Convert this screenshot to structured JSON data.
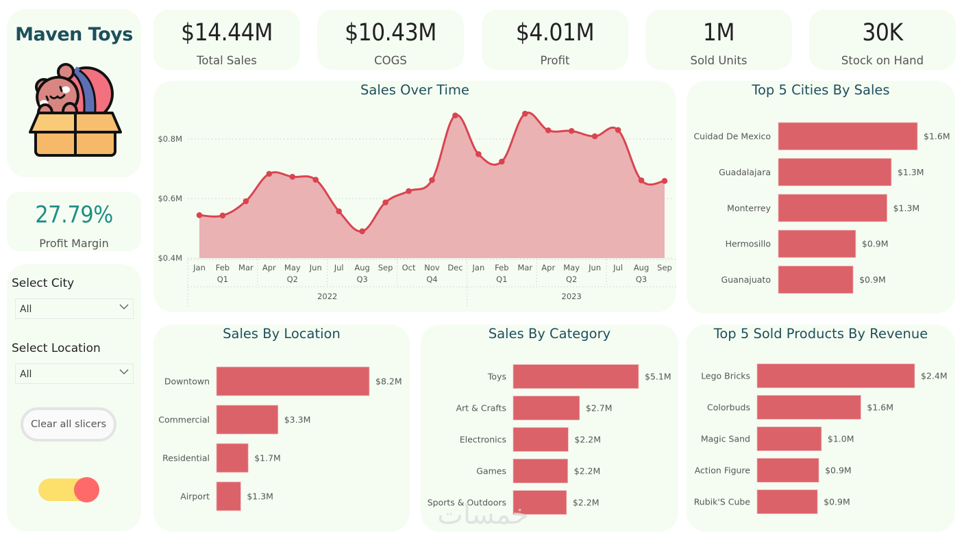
{
  "brand": {
    "title": "Maven Toys",
    "logo_icon": "teddy-bear-toy-box-icon"
  },
  "kpis": [
    {
      "value": "$14.44M",
      "label": "Total Sales"
    },
    {
      "value": "$10.43M",
      "label": "COGS"
    },
    {
      "value": "$4.01M",
      "label": "Profit"
    },
    {
      "value": "1M",
      "label": "Sold Units"
    },
    {
      "value": "30K",
      "label": "Stock on Hand"
    }
  ],
  "profit_margin": {
    "value": "27.79%",
    "label": "Profit Margin"
  },
  "slicers": {
    "city": {
      "label": "Select City",
      "value": "All"
    },
    "location": {
      "label": "Select Location",
      "value": "All"
    },
    "clear_button": "Clear all slicers",
    "toggle_on": true
  },
  "colors": {
    "bar": "#dc626a",
    "line": "#d9444f",
    "area": "#eab2b3",
    "card_bg": "#f5fdf3",
    "title": "#1e4f5c",
    "margin_value": "#1f8f84",
    "toggle_track": "#fde06b",
    "toggle_knob": "#fe6a6a"
  },
  "watermark": "خمسات",
  "chart_data": [
    {
      "id": "sales_over_time",
      "type": "area",
      "title": "Sales Over Time",
      "xlabel": "",
      "ylabel": "",
      "ylim": [
        0.4,
        0.9
      ],
      "yticks": [
        {
          "value": 0.4,
          "label": "$0.4M"
        },
        {
          "value": 0.6,
          "label": "$0.6M"
        },
        {
          "value": 0.8,
          "label": "$0.8M"
        }
      ],
      "grid": true,
      "x": [
        "Jan",
        "Feb",
        "Mar",
        "Apr",
        "May",
        "Jun",
        "Jul",
        "Aug",
        "Sep",
        "Oct",
        "Nov",
        "Dec",
        "Jan",
        "Feb",
        "Mar",
        "Apr",
        "May",
        "Jun",
        "Jul",
        "Aug",
        "Sep"
      ],
      "quarters": [
        {
          "label": "Q1",
          "start": 0,
          "end": 2
        },
        {
          "label": "Q2",
          "start": 3,
          "end": 5
        },
        {
          "label": "Q3",
          "start": 6,
          "end": 8
        },
        {
          "label": "Q4",
          "start": 9,
          "end": 11
        },
        {
          "label": "Q1",
          "start": 12,
          "end": 14
        },
        {
          "label": "Q2",
          "start": 15,
          "end": 17
        },
        {
          "label": "Q3",
          "start": 18,
          "end": 20
        }
      ],
      "years": [
        {
          "label": "2022",
          "start": 0,
          "end": 11
        },
        {
          "label": "2023",
          "start": 12,
          "end": 20
        }
      ],
      "series": [
        {
          "name": "Sales ($M)",
          "values": [
            0.544,
            0.543,
            0.591,
            0.683,
            0.673,
            0.663,
            0.557,
            0.49,
            0.587,
            0.625,
            0.662,
            0.879,
            0.749,
            0.724,
            0.885,
            0.829,
            0.827,
            0.809,
            0.83,
            0.661,
            0.659
          ]
        }
      ]
    },
    {
      "id": "top_cities",
      "type": "bar",
      "orientation": "horizontal",
      "title": "Top 5 Cities By Sales",
      "categories": [
        "Cuidad De Mexico",
        "Guadalajara",
        "Monterrey",
        "Hermosillo",
        "Guanajuato"
      ],
      "values": [
        1.6,
        1.3,
        1.25,
        0.89,
        0.86
      ],
      "labels": [
        "$1.6M",
        "$1.3M",
        "$1.3M",
        "$0.9M",
        "$0.9M"
      ]
    },
    {
      "id": "sales_by_location",
      "type": "bar",
      "orientation": "horizontal",
      "title": "Sales By Location",
      "categories": [
        "Downtown",
        "Commercial",
        "Residential",
        "Airport"
      ],
      "values": [
        8.2,
        3.3,
        1.7,
        1.3
      ],
      "labels": [
        "$8.2M",
        "$3.3M",
        "$1.7M",
        "$1.3M"
      ]
    },
    {
      "id": "sales_by_category",
      "type": "bar",
      "orientation": "horizontal",
      "title": "Sales By Category",
      "categories": [
        "Toys",
        "Art & Crafts",
        "Electronics",
        "Games",
        "Sports & Outdoors"
      ],
      "values": [
        5.1,
        2.7,
        2.24,
        2.22,
        2.17
      ],
      "labels": [
        "$5.1M",
        "$2.7M",
        "$2.2M",
        "$2.2M",
        "$2.2M"
      ]
    },
    {
      "id": "top_products",
      "type": "bar",
      "orientation": "horizontal",
      "title": "Top 5 Sold Products By Revenue",
      "categories": [
        "Lego Bricks",
        "Colorbuds",
        "Magic Sand",
        "Action Figure",
        "Rubik'S Cube"
      ],
      "values": [
        2.4,
        1.58,
        0.98,
        0.94,
        0.92
      ],
      "labels": [
        "$2.4M",
        "$1.6M",
        "$1.0M",
        "$0.9M",
        "$0.9M"
      ]
    }
  ]
}
